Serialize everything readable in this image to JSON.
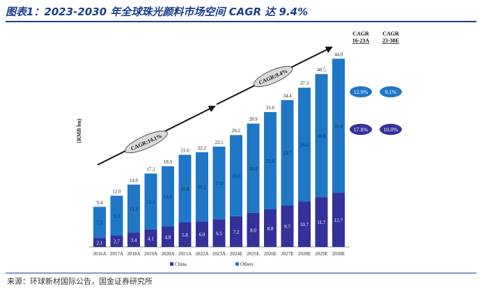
{
  "title": "图表1：2023-2030 年全球珠光颜料市场空间 CAGR 达 9.4%",
  "source": "来源：环球新材国际公告，国金证券研究所",
  "colors": {
    "china": "#33319a",
    "others": "#1f77c6",
    "arrow": "#111111",
    "title": "#1a3e8c"
  },
  "chart_data": {
    "type": "bar",
    "stacked": true,
    "ylabel": "(RMB bn)",
    "categories": [
      "2016A",
      "2017A",
      "2018A",
      "2019A",
      "2020A",
      "2021A",
      "2022A",
      "2023A",
      "2024E",
      "2025E",
      "2026E",
      "2027E",
      "2028E",
      "2029E",
      "2030E"
    ],
    "series": [
      {
        "name": "China",
        "values": [
          2.1,
          2.7,
          3.4,
          4.1,
          4.8,
          5.8,
          6.0,
          6.5,
          7.2,
          8.0,
          8.8,
          9.7,
          10.7,
          11.7,
          12.7
        ],
        "labels": [
          "2.1",
          "2.7",
          "3.4",
          "4.1",
          "4.8",
          "5.8",
          "6.0",
          "6.5",
          "7.2",
          "8.0",
          "8.8",
          "9.7",
          "10.7",
          "11.7",
          "12.7"
        ]
      },
      {
        "name": "Others",
        "values": [
          7.3,
          9.3,
          11.2,
          13.1,
          14.1,
          15.8,
          16.2,
          17.0,
          19.0,
          20.9,
          22.8,
          24.7,
          26.6,
          28.8,
          31.4
        ],
        "labels": [
          "7.3",
          "9.3",
          "11.2",
          "13.1",
          "14.1",
          "15.8",
          "16.2",
          "17.0",
          "19.0",
          "20.9",
          "22.8",
          "24.7",
          "26.6",
          "28.8",
          "31.4"
        ]
      }
    ],
    "totals": [
      9.4,
      12.0,
      14.6,
      17.2,
      18.9,
      21.6,
      22.2,
      23.5,
      26.2,
      28.9,
      31.6,
      34.4,
      37.3,
      40.5,
      44.0
    ],
    "total_labels": [
      "9.4",
      "12.0",
      "14.6",
      "17.2",
      "18.9",
      "21.6",
      "22.2",
      "23.5",
      "26.2",
      "28.9",
      "31.6",
      "34.4",
      "37.3",
      "40.5",
      "44.0"
    ],
    "ylim": [
      0,
      44
    ],
    "cagr_annotations": [
      "CAGR:14.1%",
      "CAGR:9.4%"
    ],
    "cagr_table": {
      "headers": [
        [
          "CAGR",
          "16-23A"
        ],
        [
          "CAGR",
          "23-30E"
        ]
      ],
      "rows": [
        {
          "series": "Others",
          "values": [
            "12.9%",
            "9.1%"
          ]
        },
        {
          "series": "China",
          "values": [
            "17.8%",
            "10.0%"
          ]
        }
      ]
    },
    "legend": [
      "China",
      "Others"
    ]
  }
}
